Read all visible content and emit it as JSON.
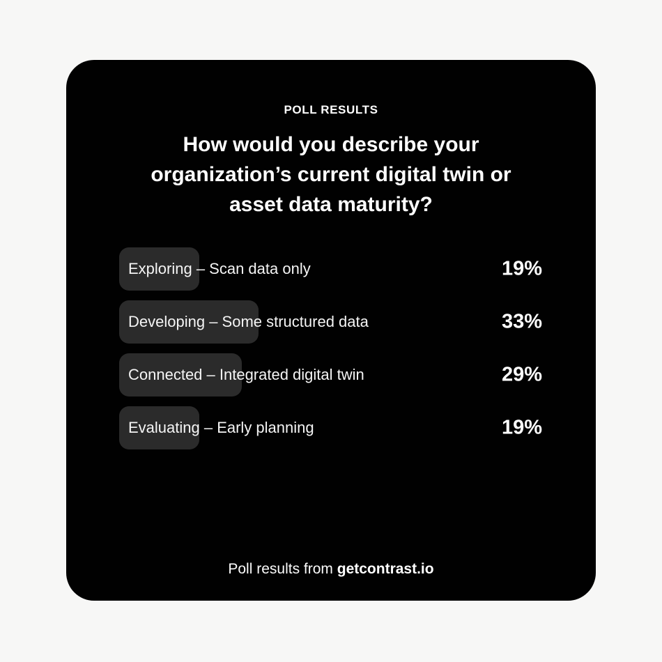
{
  "header": {
    "kicker": "POLL RESULTS",
    "title_lines": [
      "How would you describe your",
      "organization’s current digital twin or",
      "asset data maturity?"
    ]
  },
  "options": [
    {
      "label": "Exploring – Scan data only",
      "pct": 19,
      "pct_label": "19%"
    },
    {
      "label": "Developing – Some structured data",
      "pct": 33,
      "pct_label": "33%"
    },
    {
      "label": "Connected – Integrated digital twin",
      "pct": 29,
      "pct_label": "29%"
    },
    {
      "label": "Evaluating – Early planning",
      "pct": 19,
      "pct_label": "19%"
    }
  ],
  "footer": {
    "prefix": "Poll results from ",
    "brand": "getcontrast.io"
  },
  "colors": {
    "page_background": "#f7f7f6",
    "card_background": "#010101",
    "bar": "#2b2b2b",
    "text": "#ffffff"
  },
  "chart_data": {
    "type": "bar",
    "orientation": "horizontal",
    "title": "How would you describe your organization’s current digital twin or asset data maturity?",
    "categories": [
      "Exploring – Scan data only",
      "Developing – Some structured data",
      "Connected – Integrated digital twin",
      "Evaluating – Early planning"
    ],
    "values": [
      19,
      33,
      29,
      19
    ],
    "unit": "%",
    "value_labels": [
      "19%",
      "33%",
      "29%",
      "19%"
    ],
    "xlim": [
      0,
      100
    ],
    "grid": false,
    "legend": false,
    "source_label": "Poll results from getcontrast.io"
  }
}
